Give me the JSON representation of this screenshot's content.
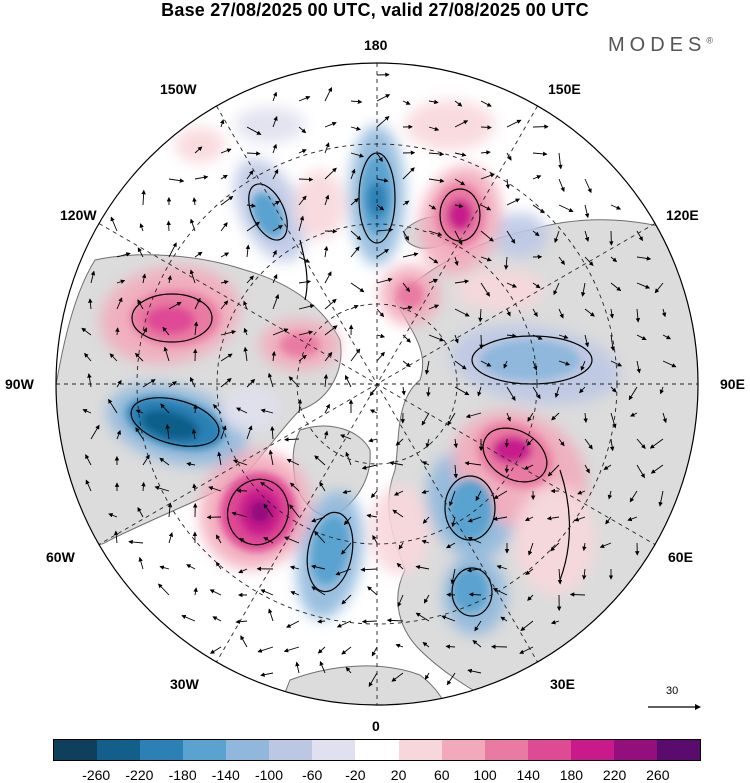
{
  "title": "Base 27/08/2025 00 UTC, valid 27/08/2025 00 UTC",
  "brand": "MODES",
  "brand_mark": "®",
  "longitude_labels": {
    "lon_180": "180",
    "lon_150w": "150W",
    "lon_150e": "150E",
    "lon_120w": "120W",
    "lon_120e": "120E",
    "lon_90w": "90W",
    "lon_90e": "90E",
    "lon_60w": "60W",
    "lon_60e": "60E",
    "lon_30w": "30W",
    "lon_30e": "30E",
    "lon_0": "0"
  },
  "vector_scale_label": "30",
  "colorbar": {
    "ticks": [
      "-260",
      "-220",
      "-180",
      "-140",
      "-100",
      "-60",
      "-20",
      "20",
      "60",
      "100",
      "140",
      "180",
      "220",
      "260"
    ],
    "colors": [
      "#0e3f5c",
      "#115f8a",
      "#2b81b5",
      "#5aa2cf",
      "#8fb8dc",
      "#bcc7e4",
      "#e0e0ef",
      "#ffffff",
      "#f8d7db",
      "#f2aabb",
      "#e97aa2",
      "#df4a95",
      "#c91a8c",
      "#930f7e",
      "#5a0b6e"
    ]
  },
  "colors": {
    "land": "#dcdcdc",
    "ocean": "#ffffff",
    "coast": "#6e6e6e",
    "grid": "#222222"
  }
}
